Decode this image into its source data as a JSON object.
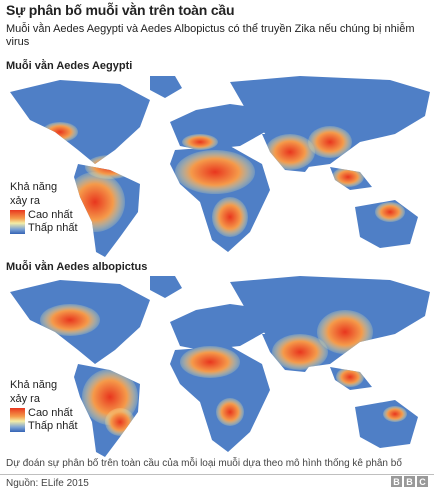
{
  "title": "Sự phân bố muỗi vằn trên toàn cầu",
  "subtitle": "Muỗi vằn Aedes Aegypti và Aedes Albopictus có thể truyền Zika nếu chúng bị nhiễm virus",
  "maps": [
    {
      "heading": "Muỗi vằn Aedes Aegypti",
      "legend": {
        "title_line1": "Khả năng",
        "title_line2": "xảy ra",
        "high": "Cao nhất",
        "low": "Thấp nhất"
      }
    },
    {
      "heading": "Muỗi vằn Aedes albopictus",
      "legend": {
        "title_line1": "Khả năng",
        "title_line2": "xảy ra",
        "high": "Cao nhất",
        "low": "Thấp nhất"
      }
    }
  ],
  "colors": {
    "high": "#e8361e",
    "mid": "#f4eda6",
    "low": "#3463b5",
    "land_base": "#4f7fc6"
  },
  "caption": "Dự đoán sự phân bố trên toàn cầu của mỗi loại muỗi dựa theo mô hình thống kê phân bố",
  "source": "Nguồn: ELife 2015",
  "logo": [
    "B",
    "B",
    "C"
  ]
}
